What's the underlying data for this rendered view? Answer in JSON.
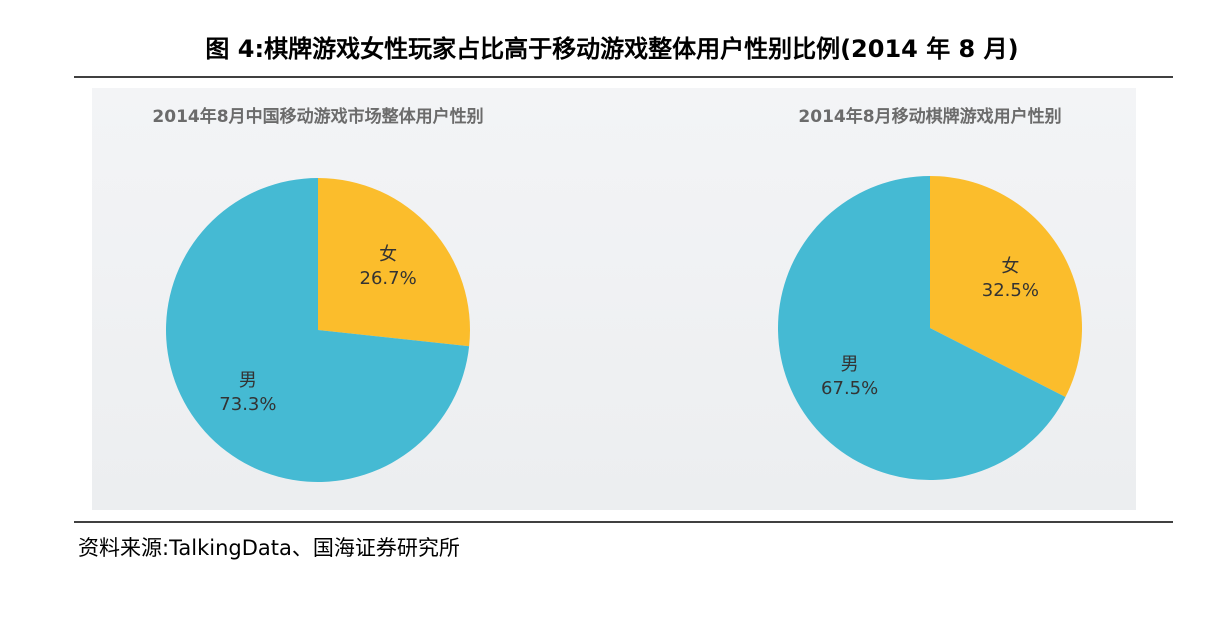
{
  "figure_title": "图 4:棋牌游戏女性玩家占比高于移动游戏整体用户性别比例(2014 年 8 月)",
  "source": "资料来源:TalkingData、国海证券研究所",
  "chart_data": [
    {
      "type": "pie",
      "title": "2014年8月中国移动游戏市场整体用户性别",
      "categories": [
        "女",
        "男"
      ],
      "values": [
        26.7,
        73.3
      ],
      "value_labels": [
        "26.7%",
        "73.3%"
      ],
      "colors": [
        "#fbbd2c",
        "#45bad3"
      ]
    },
    {
      "type": "pie",
      "title": "2014年8月移动棋牌游戏用户性别",
      "categories": [
        "女",
        "男"
      ],
      "values": [
        32.5,
        67.5
      ],
      "value_labels": [
        "32.5%",
        "67.5%"
      ],
      "colors": [
        "#fbbd2c",
        "#45bad3"
      ]
    }
  ]
}
